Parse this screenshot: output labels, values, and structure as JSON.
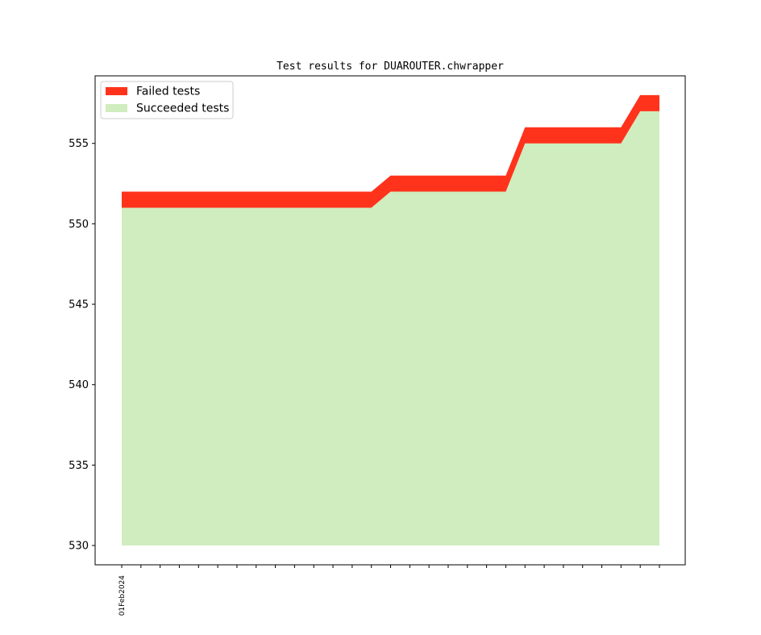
{
  "chart_data": {
    "type": "area",
    "title": "Test results for DUAROUTER.chwrapper",
    "xlabel": "",
    "ylabel": "",
    "ylim": [
      528.8,
      559.2
    ],
    "yticks": [
      530,
      535,
      540,
      545,
      550,
      555
    ],
    "x": [
      0,
      1,
      2,
      3,
      4,
      5,
      6,
      7,
      8,
      9,
      10,
      11,
      12,
      13,
      14,
      15,
      16,
      17,
      18,
      19,
      20,
      21,
      22,
      23,
      24,
      25,
      26,
      27,
      28
    ],
    "x_tick_labels": [
      "01Feb2024",
      "",
      "",
      "",
      "",
      "",
      "",
      "",
      "",
      "",
      "",
      "",
      "",
      "",
      "",
      "",
      "",
      "",
      "",
      "",
      "",
      "",
      "",
      "",
      "",
      "",
      "",
      "",
      ""
    ],
    "baseline": 530,
    "series": [
      {
        "name": "Succeeded tests",
        "color": "#cfedbf",
        "values": [
          551,
          551,
          551,
          551,
          551,
          551,
          551,
          551,
          551,
          551,
          551,
          551,
          551,
          551,
          552,
          552,
          552,
          552,
          552,
          552,
          552,
          555,
          555,
          555,
          555,
          555,
          555,
          557,
          557
        ]
      },
      {
        "name": "Failed tests",
        "color": "#ff331c",
        "values": [
          1,
          1,
          1,
          1,
          1,
          1,
          1,
          1,
          1,
          1,
          1,
          1,
          1,
          1,
          1,
          1,
          1,
          1,
          1,
          1,
          1,
          1,
          1,
          1,
          1,
          1,
          1,
          1,
          1
        ]
      }
    ],
    "legend_position": "top-left",
    "grid": false
  }
}
